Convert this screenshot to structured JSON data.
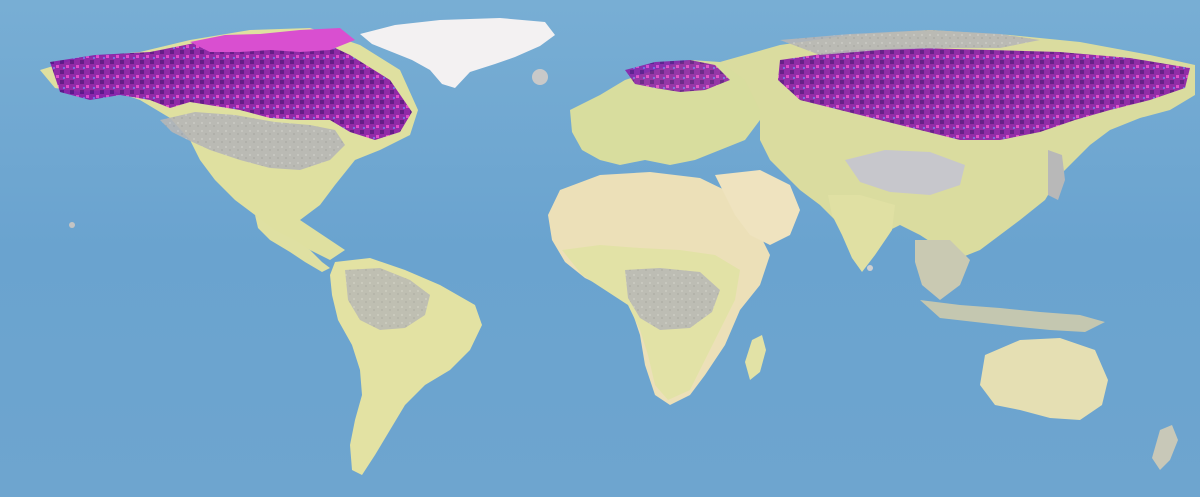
{
  "map": {
    "projection": "equirectangular",
    "extent": "world",
    "labels": [],
    "colors": {
      "ocean": "#6fa6cf",
      "ocean_deep": "#5f98c4",
      "land_low": "#e8e7a6",
      "land_mid": "#d9d7a0",
      "desert": "#efe2bd",
      "ice": "#f4f2f3",
      "gray_mask": "#b5b5b5",
      "magenta": "#e83ecf",
      "pink": "#ff6aa8",
      "purple": "#7a1aa0",
      "dark_purple": "#4a0a78",
      "blue_violet": "#6a63e0"
    },
    "legend": []
  }
}
